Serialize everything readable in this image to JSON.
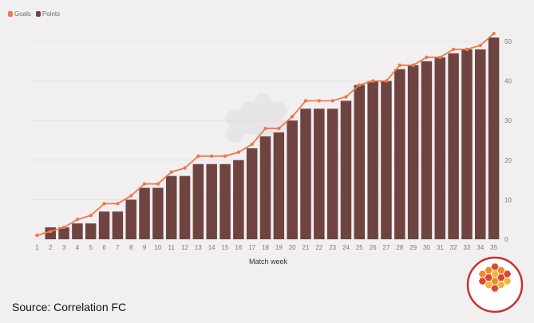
{
  "source_text": "Source: Correlation FC",
  "colors": {
    "goals": "#f0784c",
    "points": "#6e4340",
    "axis_text": "#7a7a7a",
    "grid": "#dcdada",
    "logo_ring": "#c9302c",
    "logo_hex_light": "#f7b23b",
    "logo_hex_mid": "#f18a2e",
    "logo_hex_dark": "#e0452b"
  },
  "chart_data": {
    "type": "bar",
    "xlabel": "Match week",
    "ylabel": "",
    "ylim": [
      0,
      52
    ],
    "yticks": [
      0,
      10,
      20,
      30,
      40,
      50
    ],
    "grid": true,
    "legend": "top-left",
    "categories": [
      "1",
      "2",
      "3",
      "4",
      "5",
      "6",
      "7",
      "8",
      "9",
      "10",
      "11",
      "12",
      "13",
      "14",
      "15",
      "16",
      "17",
      "18",
      "19",
      "20",
      "21",
      "22",
      "23",
      "24",
      "25",
      "26",
      "27",
      "28",
      "29",
      "30",
      "31",
      "32",
      "33",
      "34",
      "35"
    ],
    "series": [
      {
        "name": "Points",
        "type": "bar",
        "values": [
          0,
          3,
          3,
          4,
          4,
          7,
          7,
          10,
          13,
          13,
          16,
          16,
          19,
          19,
          19,
          20,
          23,
          26,
          27,
          30,
          33,
          33,
          33,
          35,
          39,
          40,
          40,
          43,
          44,
          45,
          46,
          47,
          48,
          48,
          51
        ]
      },
      {
        "name": "Goals",
        "type": "line",
        "values": [
          1,
          2,
          3,
          5,
          6,
          9,
          9,
          11,
          14,
          14,
          17,
          18,
          21,
          21,
          21,
          22,
          24,
          28,
          28,
          31,
          35,
          35,
          35,
          36,
          39,
          40,
          40,
          44,
          44,
          46,
          46,
          48,
          48,
          49,
          52
        ]
      }
    ]
  }
}
